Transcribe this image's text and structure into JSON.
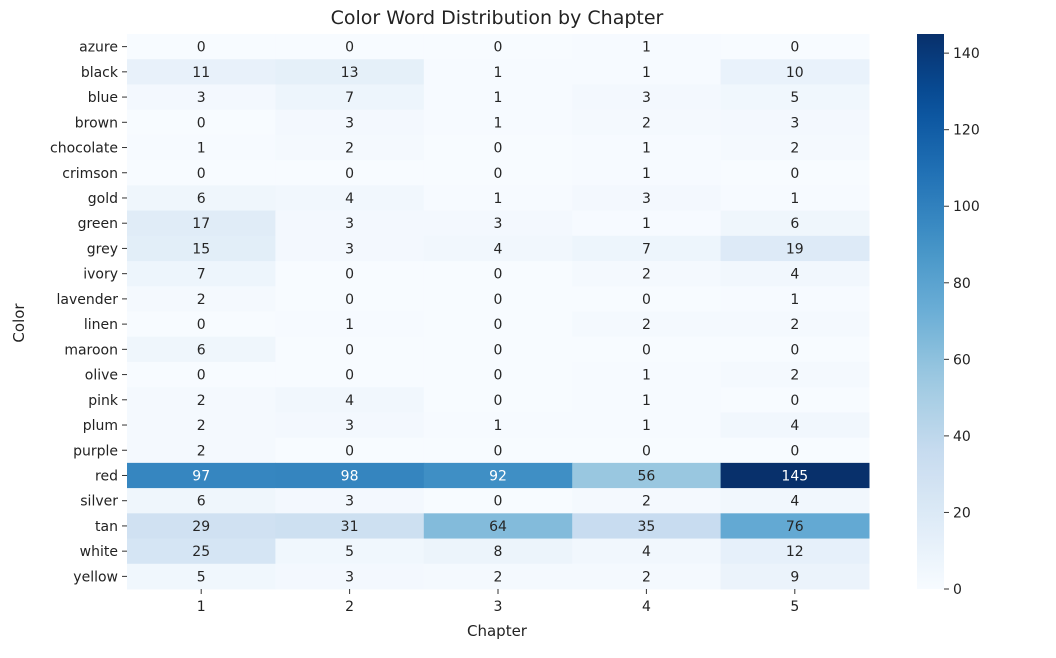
{
  "chart_data": {
    "type": "heatmap",
    "title": "Color Word Distribution by Chapter",
    "xlabel": "Chapter",
    "ylabel": "Color",
    "x_categories": [
      "1",
      "2",
      "3",
      "4",
      "5"
    ],
    "y_categories": [
      "azure",
      "black",
      "blue",
      "brown",
      "chocolate",
      "crimson",
      "gold",
      "green",
      "grey",
      "ivory",
      "lavender",
      "linen",
      "maroon",
      "olive",
      "pink",
      "plum",
      "purple",
      "red",
      "silver",
      "tan",
      "white",
      "yellow"
    ],
    "values": [
      [
        0,
        0,
        0,
        1,
        0
      ],
      [
        11,
        13,
        1,
        1,
        10
      ],
      [
        3,
        7,
        1,
        3,
        5
      ],
      [
        0,
        3,
        1,
        2,
        3
      ],
      [
        1,
        2,
        0,
        1,
        2
      ],
      [
        0,
        0,
        0,
        1,
        0
      ],
      [
        6,
        4,
        1,
        3,
        1
      ],
      [
        17,
        3,
        3,
        1,
        6
      ],
      [
        15,
        3,
        4,
        7,
        19
      ],
      [
        7,
        0,
        0,
        2,
        4
      ],
      [
        2,
        0,
        0,
        0,
        1
      ],
      [
        0,
        1,
        0,
        2,
        2
      ],
      [
        6,
        0,
        0,
        0,
        0
      ],
      [
        0,
        0,
        0,
        1,
        2
      ],
      [
        2,
        4,
        0,
        1,
        0
      ],
      [
        2,
        3,
        1,
        1,
        4
      ],
      [
        2,
        0,
        0,
        0,
        0
      ],
      [
        97,
        98,
        92,
        56,
        145
      ],
      [
        6,
        3,
        0,
        2,
        4
      ],
      [
        29,
        31,
        64,
        35,
        76
      ],
      [
        25,
        5,
        8,
        4,
        12
      ],
      [
        5,
        3,
        2,
        2,
        9
      ]
    ],
    "colorbar": {
      "colormap": "Blues",
      "range": [
        0,
        145
      ],
      "ticks": [
        0,
        20,
        40,
        60,
        80,
        100,
        120,
        140
      ]
    },
    "annotations": "cell values shown",
    "colors": {
      "low": "#f7fbff",
      "high": "#08306b"
    }
  }
}
